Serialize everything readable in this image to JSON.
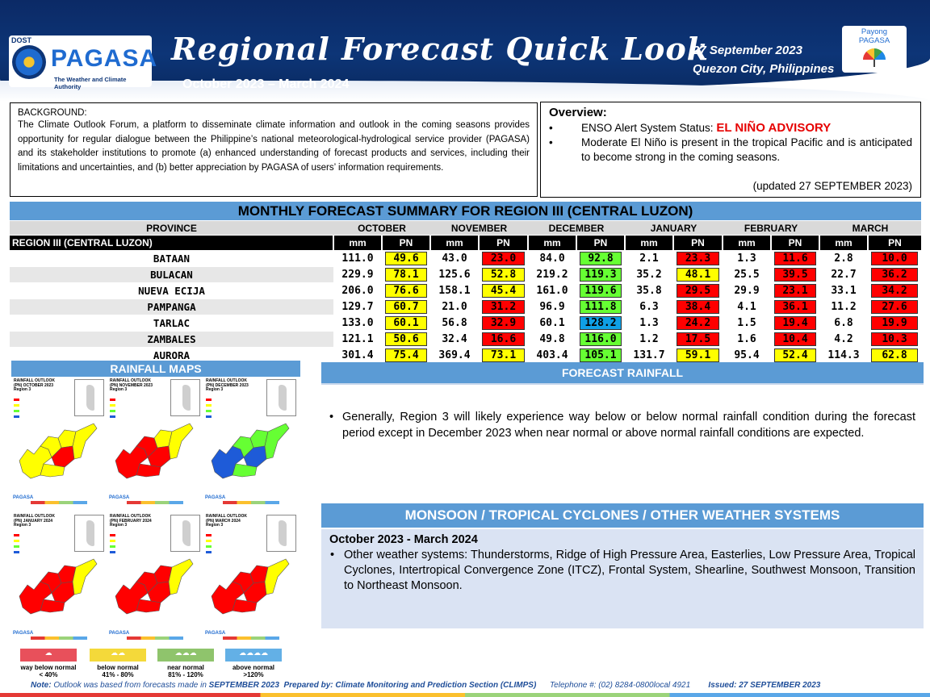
{
  "header": {
    "logo_dost": "DOST",
    "logo_name": "PAGASA",
    "logo_tagline": "The Weather and Climate Authority",
    "title": "Regional Forecast Quick Look",
    "period": "October 2023 – March 2024",
    "date": "27 September 2023",
    "place": "Quezon City, Philippines",
    "payong_line1": "Payong",
    "payong_line2": "PAGASA"
  },
  "background": {
    "heading": "BACKGROUND:",
    "text": "The Climate Outlook Forum, a platform to disseminate climate information and outlook in the coming seasons provides opportunity for regular dialogue between the Philippine’s national meteorological-hydrological service provider (PAGASA) and its stakeholder institutions to promote (a) enhanced understanding of forecast products and services, including their limitations and uncertainties, and (b) better appreciation by PAGASA of users’ information requirements."
  },
  "overview": {
    "heading": "Overview:",
    "enso_label": "ENSO Alert System Status: ",
    "enso_status": "EL NIÑO ADVISORY",
    "item2": "Moderate El Niño is present in the tropical Pacific and is anticipated to become strong in the coming seasons.",
    "updated": "(updated 27 SEPTEMBER 2023)"
  },
  "table": {
    "title": "MONTHLY FORECAST SUMMARY FOR REGION III (CENTRAL LUZON)",
    "province_header": "PROVINCE",
    "region_label": "REGION III (CENTRAL LUZON)",
    "months": [
      "OCTOBER",
      "NOVEMBER",
      "DECEMBER",
      "JANUARY",
      "FEBRUARY",
      "MARCH"
    ],
    "unit_mm": "mm",
    "unit_pn": "PN",
    "rows": [
      {
        "province": "BATAAN",
        "values": [
          [
            "111.0",
            "49.6"
          ],
          [
            "43.0",
            "23.0"
          ],
          [
            "84.0",
            "92.8"
          ],
          [
            "2.1",
            "23.3"
          ],
          [
            "1.3",
            "11.6"
          ],
          [
            "2.8",
            "10.0"
          ]
        ]
      },
      {
        "province": "BULACAN",
        "values": [
          [
            "229.9",
            "78.1"
          ],
          [
            "125.6",
            "52.8"
          ],
          [
            "219.2",
            "119.3"
          ],
          [
            "35.2",
            "48.1"
          ],
          [
            "25.5",
            "39.5"
          ],
          [
            "22.7",
            "36.2"
          ]
        ]
      },
      {
        "province": "NUEVA ECIJA",
        "values": [
          [
            "206.0",
            "76.6"
          ],
          [
            "158.1",
            "45.4"
          ],
          [
            "161.0",
            "119.6"
          ],
          [
            "35.8",
            "29.5"
          ],
          [
            "29.9",
            "23.1"
          ],
          [
            "33.1",
            "34.2"
          ]
        ]
      },
      {
        "province": "PAMPANGA",
        "values": [
          [
            "129.7",
            "60.7"
          ],
          [
            "21.0",
            "31.2"
          ],
          [
            "96.9",
            "111.8"
          ],
          [
            "6.3",
            "38.4"
          ],
          [
            "4.1",
            "36.1"
          ],
          [
            "11.2",
            "27.6"
          ]
        ]
      },
      {
        "province": "TARLAC",
        "values": [
          [
            "133.0",
            "60.1"
          ],
          [
            "56.8",
            "32.9"
          ],
          [
            "60.1",
            "128.2"
          ],
          [
            "1.3",
            "24.2"
          ],
          [
            "1.5",
            "19.4"
          ],
          [
            "6.8",
            "19.9"
          ]
        ]
      },
      {
        "province": "ZAMBALES",
        "values": [
          [
            "121.1",
            "50.6"
          ],
          [
            "32.4",
            "16.6"
          ],
          [
            "49.8",
            "116.0"
          ],
          [
            "1.2",
            "17.5"
          ],
          [
            "1.6",
            "10.4"
          ],
          [
            "4.2",
            "10.3"
          ]
        ]
      },
      {
        "province": "AURORA",
        "values": [
          [
            "301.4",
            "75.4"
          ],
          [
            "369.4",
            "73.1"
          ],
          [
            "403.4",
            "105.1"
          ],
          [
            "131.7",
            "59.1"
          ],
          [
            "95.4",
            "52.4"
          ],
          [
            "114.3",
            "62.8"
          ]
        ]
      }
    ]
  },
  "colors": {
    "way_below": "#ff0000",
    "below": "#ffff00",
    "near": "#66ff33",
    "above": "#0fa0e6"
  },
  "maps": {
    "title": "RAINFALL MAPS",
    "panels": [
      {
        "title": "RAINFALL OUTLOOK (PN) OCTOBER 2023 Region 3"
      },
      {
        "title": "RAINFALL OUTLOOK (PN) NOVEMBER 2023 Region 3"
      },
      {
        "title": "RAINFALL OUTLOOK (PN) DECEMBER 2023 Region 3"
      },
      {
        "title": "RAINFALL OUTLOOK (PN) JANUARY 2024 Region 3"
      },
      {
        "title": "RAINFALL OUTLOOK (PN) FEBRUARY 2024 Region 3"
      },
      {
        "title": "RAINFALL OUTLOOK (PN) MARCH 2024 Region 3"
      }
    ],
    "legend": [
      {
        "label": "way below normal",
        "range": "< 40%"
      },
      {
        "label": "below normal",
        "range": "41% - 80%"
      },
      {
        "label": "near normal",
        "range": "81% - 120%"
      },
      {
        "label": "above normal",
        "range": ">120%"
      }
    ]
  },
  "forecast": {
    "title": "FORECAST RAINFALL",
    "text": "Generally, Region 3 will likely experience way below or below normal rainfall condition during the forecast period except in December 2023 when near normal or above normal rainfall conditions are expected."
  },
  "monsoon": {
    "title": "MONSOON / TROPICAL CYCLONES / OTHER WEATHER SYSTEMS",
    "period": "October 2023 - March 2024",
    "text": "Other weather systems: Thunderstorms,  Ridge of High Pressure Area,  Easterlies, Low Pressure Area, Tropical Cyclones, Intertropical Convergence Zone (ITCZ), Frontal System, Shearline, Southwest Monsoon, Transition to Northeast Monsoon."
  },
  "footer": {
    "note_label": "Note:",
    "note_text": "Outlook was based from forecasts made in",
    "note_month": "SEPTEMBER 2023",
    "prepared": "Prepared by: Climate Monitoring and Prediction Section (CLIMPS)",
    "telephone": "Telephone #: (02) 8284-0800local 4921",
    "issued": "Issued: 27 SEPTEMBER 2023"
  }
}
